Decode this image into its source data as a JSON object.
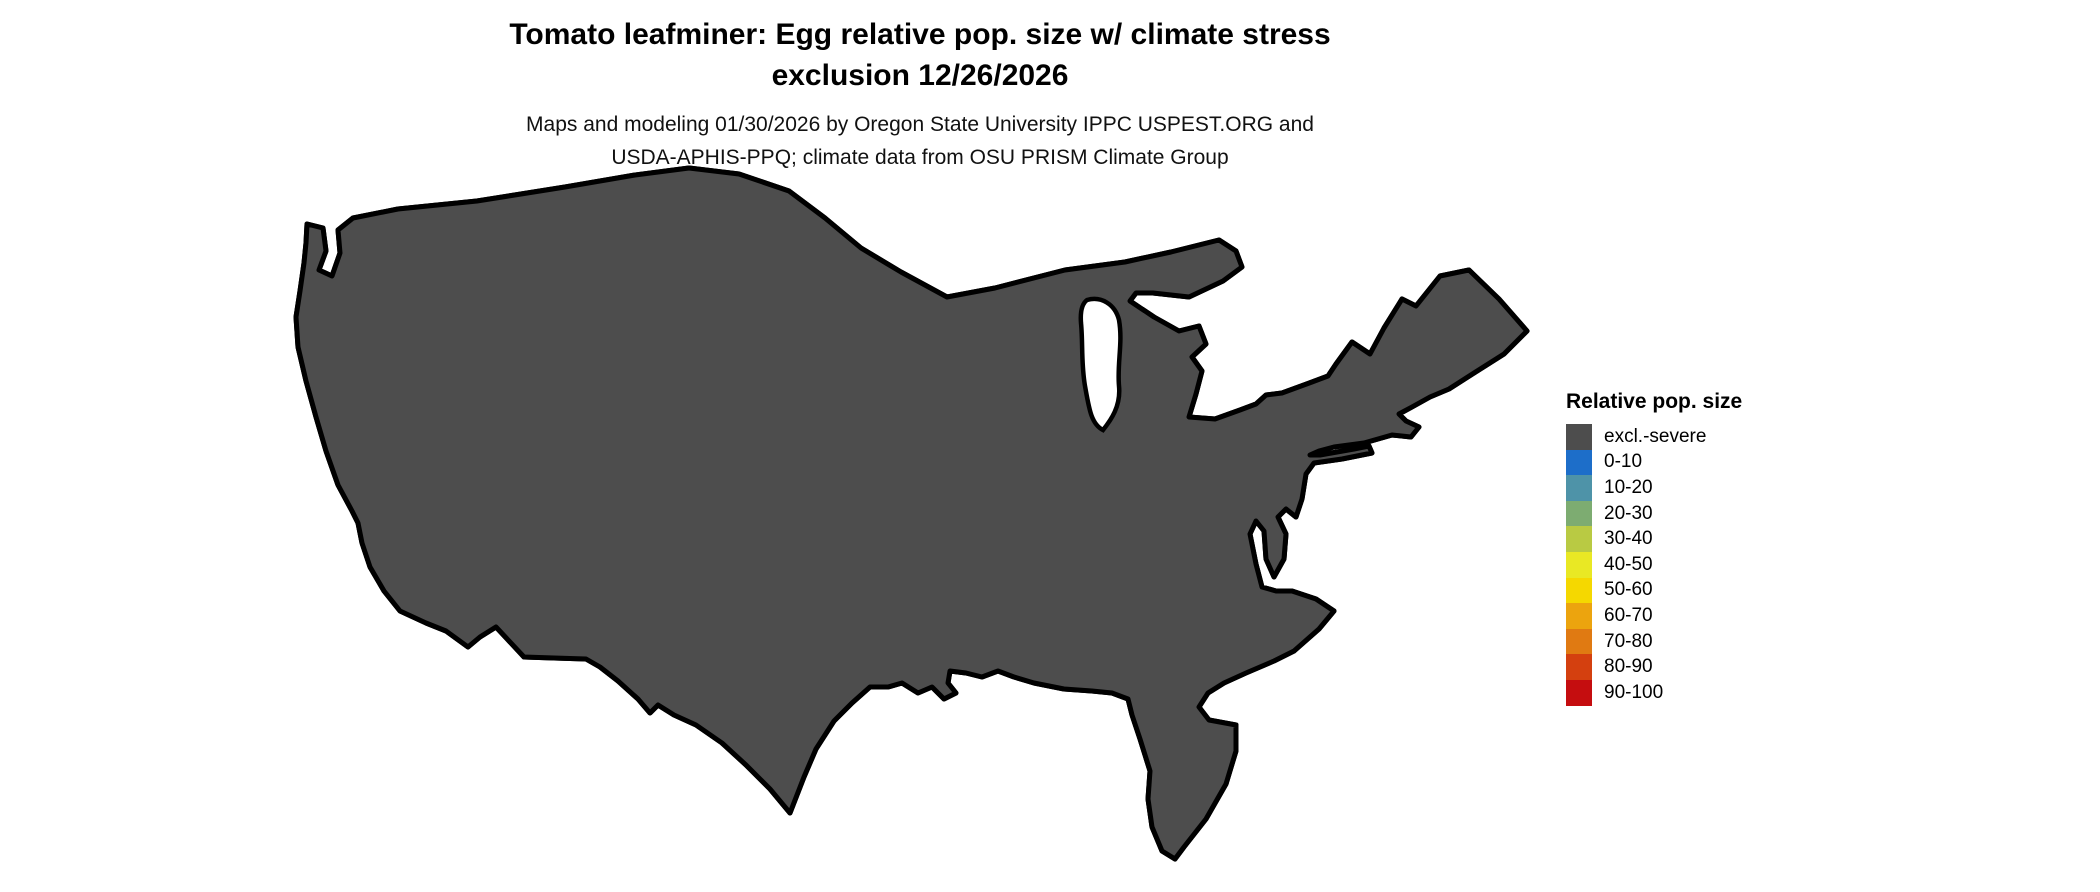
{
  "title": {
    "line1": "Tomato leafminer: Egg relative pop. size w/ climate stress",
    "line2": "exclusion 12/26/2026"
  },
  "subtitle": {
    "line1": "Maps and modeling 01/30/2026 by Oregon State University IPPC USPEST.ORG and",
    "line2": "USDA-APHIS-PPQ; climate data from OSU PRISM Climate Group"
  },
  "legend": {
    "title": "Relative pop. size",
    "items": [
      {
        "label": "excl.-severe",
        "color": "#4d4d4d"
      },
      {
        "label": "0-10",
        "color": "#1d6ec9"
      },
      {
        "label": "10-20",
        "color": "#4e93a8"
      },
      {
        "label": "20-30",
        "color": "#7dac71"
      },
      {
        "label": "30-40",
        "color": "#b9ca43"
      },
      {
        "label": "40-50",
        "color": "#e9e824"
      },
      {
        "label": "50-60",
        "color": "#f5d800"
      },
      {
        "label": "60-70",
        "color": "#eca40e"
      },
      {
        "label": "70-80",
        "color": "#e07a12"
      },
      {
        "label": "80-90",
        "color": "#d4400f"
      },
      {
        "label": "90-100",
        "color": "#c50d0f"
      }
    ]
  },
  "map": {
    "background": "#ffffff",
    "excluded_land_color": "#4d4d4d",
    "low_pop_color": "#1d6ec9",
    "state_border_color": "#000000",
    "lake_color": "#ffffff",
    "speckle_palette": {
      "red": "#c50d0f",
      "red_orange": "#d4400f",
      "orange": "#e8860b",
      "yellow": "#f2e713",
      "gold": "#f5d800",
      "green": "#9abb4f"
    }
  }
}
